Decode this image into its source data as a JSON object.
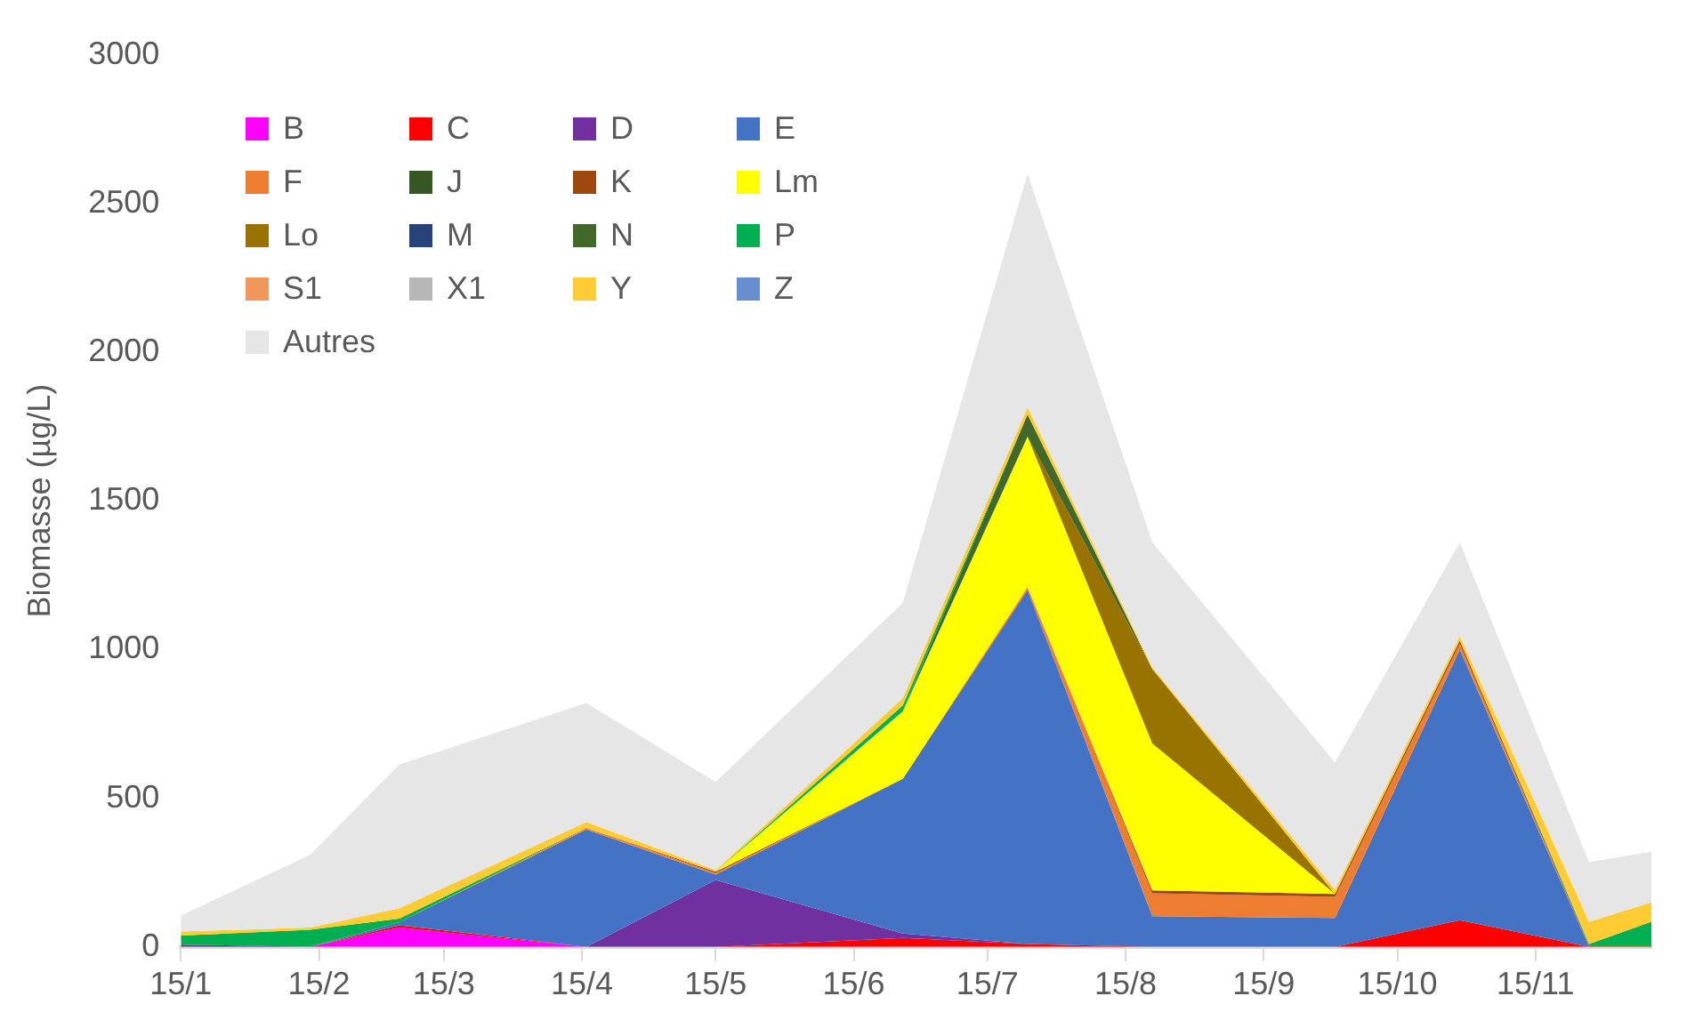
{
  "chart_data": {
    "type": "area",
    "stacked": true,
    "ylabel": "Biomasse (µg/L)",
    "x": [
      "--01-15",
      "--02-13",
      "--03-05",
      "--04-16",
      "--05-15",
      "--06-26",
      "--07-24",
      "--08-21",
      "--10-01",
      "--10-29",
      "--11-27",
      "--12-11"
    ],
    "xlim": [
      "--01-15",
      "--12-11"
    ],
    "xticks": [
      {
        "value": "--01-15",
        "label": "15/1"
      },
      {
        "value": "--02-15",
        "label": "15/2"
      },
      {
        "value": "--03-15",
        "label": "15/3"
      },
      {
        "value": "--04-15",
        "label": "15/4"
      },
      {
        "value": "--05-15",
        "label": "15/5"
      },
      {
        "value": "--06-15",
        "label": "15/6"
      },
      {
        "value": "--07-15",
        "label": "15/7"
      },
      {
        "value": "--08-15",
        "label": "15/8"
      },
      {
        "value": "--09-15",
        "label": "15/9"
      },
      {
        "value": "--10-15",
        "label": "15/10"
      },
      {
        "value": "--11-15",
        "label": "15/11"
      }
    ],
    "ylim": [
      0,
      3000
    ],
    "yticks": [
      0,
      500,
      1000,
      1500,
      2000,
      2500,
      3000
    ],
    "grid": false,
    "legend": "top left",
    "series": [
      {
        "name": "B",
        "color": "#ff00ff",
        "values": [
          null,
          0,
          65,
          0,
          null,
          null,
          null,
          null,
          null,
          null,
          null,
          null
        ]
      },
      {
        "name": "C",
        "color": "#ff0000",
        "values": [
          null,
          0,
          8,
          0,
          0,
          30,
          10,
          0,
          0,
          90,
          0,
          null
        ]
      },
      {
        "name": "D",
        "color": "#7030a0",
        "values": [
          8,
          0,
          null,
          0,
          225,
          15,
          0,
          null,
          null,
          null,
          null,
          null
        ]
      },
      {
        "name": "E",
        "color": "#4472c4",
        "values": [
          null,
          0,
          10,
          395,
          18,
          520,
          1190,
          103,
          97,
          910,
          0,
          null
        ]
      },
      {
        "name": "F",
        "color": "#ed7d31",
        "values": [
          null,
          null,
          0,
          5,
          5,
          0,
          10,
          77,
          71,
          20,
          0,
          null
        ]
      },
      {
        "name": "J",
        "color": "#375623",
        "values": [
          null,
          null,
          null,
          null,
          null,
          null,
          null,
          null,
          null,
          null,
          null,
          null
        ]
      },
      {
        "name": "K",
        "color": "#9e480e",
        "values": [
          null,
          null,
          null,
          0,
          5,
          0,
          0,
          10,
          10,
          10,
          5,
          5
        ]
      },
      {
        "name": "Lm",
        "color": "#ffff00",
        "values": [
          null,
          null,
          null,
          null,
          0,
          227,
          506,
          494,
          0,
          null,
          null,
          null
        ]
      },
      {
        "name": "Lo",
        "color": "#997300",
        "values": [
          null,
          null,
          null,
          null,
          null,
          null,
          0,
          251,
          0,
          null,
          null,
          null
        ]
      },
      {
        "name": "M",
        "color": "#264478",
        "values": [
          null,
          null,
          null,
          null,
          null,
          null,
          null,
          null,
          null,
          null,
          null,
          null
        ]
      },
      {
        "name": "N",
        "color": "#43682b",
        "values": [
          null,
          null,
          null,
          null,
          null,
          0,
          75,
          0,
          null,
          null,
          null,
          null
        ]
      },
      {
        "name": "P",
        "color": "#00b050",
        "values": [
          30,
          58,
          12,
          0,
          0,
          20,
          0,
          null,
          null,
          0,
          5,
          80
        ]
      },
      {
        "name": "S1",
        "color": "#f1975a",
        "values": [
          null,
          null,
          null,
          null,
          null,
          null,
          null,
          null,
          null,
          null,
          null,
          null
        ]
      },
      {
        "name": "X1",
        "color": "#b7b7b7",
        "values": [
          null,
          null,
          null,
          null,
          null,
          null,
          null,
          null,
          null,
          null,
          null,
          null
        ]
      },
      {
        "name": "Y",
        "color": "#ffcd33",
        "values": [
          14,
          7,
          35,
          20,
          5,
          25,
          24,
          5,
          15,
          15,
          75,
          65
        ]
      },
      {
        "name": "Z",
        "color": "#698ed0",
        "values": [
          null,
          null,
          null,
          null,
          null,
          null,
          null,
          null,
          null,
          null,
          null,
          null
        ]
      },
      {
        "name": "Autres",
        "color": "#e7e6e6",
        "values": [
          53,
          245,
          483,
          400,
          297,
          320,
          785,
          420,
          427,
          315,
          200,
          170
        ]
      }
    ]
  }
}
